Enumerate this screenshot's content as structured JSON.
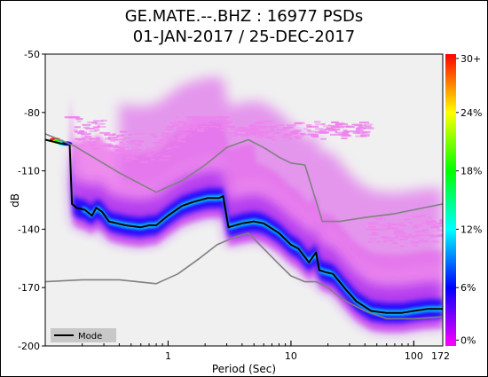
{
  "chart_data": {
    "type": "heatmap",
    "title": "GE.MATE.--.BHZ : 16977 PSDs",
    "subtitle": "01-JAN-2017 / 25-DEC-2017",
    "xlabel": "Period (Sec)",
    "ylabel": "dB",
    "x_scale": "log",
    "xlim": [
      0.1,
      172
    ],
    "ylim": [
      -200,
      -50
    ],
    "x_ticks": [
      {
        "value": 1,
        "label": "1"
      },
      {
        "value": 10,
        "label": "10"
      },
      {
        "value": 100,
        "label": "100"
      },
      {
        "value": 172,
        "label": "172"
      }
    ],
    "y_ticks": [
      {
        "value": -50,
        "label": "-50"
      },
      {
        "value": -80,
        "label": "-80"
      },
      {
        "value": -110,
        "label": "-110"
      },
      {
        "value": -140,
        "label": "-140"
      },
      {
        "value": -170,
        "label": "-170"
      },
      {
        "value": -200,
        "label": "-200"
      }
    ],
    "colorbar": {
      "colors": [
        "#ff00ff",
        "#0000ff",
        "#00ffff",
        "#00ff00",
        "#ffff00",
        "#ff0000"
      ],
      "ticks": [
        "0%",
        "6%",
        "12%",
        "18%",
        "24%",
        "30+"
      ]
    },
    "legend": {
      "position": "bottom-left",
      "entries": [
        "Mode"
      ]
    },
    "background_color": "#f0f0f0",
    "series": [
      {
        "name": "Mode",
        "color": "#000000",
        "x": [
          0.1,
          0.135,
          0.158,
          0.165,
          0.18,
          0.21,
          0.24,
          0.26,
          0.29,
          0.33,
          0.45,
          0.6,
          0.7,
          0.8,
          1.0,
          1.3,
          1.6,
          2.1,
          2.6,
          2.8,
          3.1,
          4.0,
          5.0,
          6.0,
          8.0,
          10.0,
          11.5,
          14.0,
          16.0,
          17.0,
          19.0,
          22.0,
          28.0,
          34.0,
          45.0,
          60.0,
          80.0,
          100.0,
          130.0,
          172.0
        ],
        "y": [
          -94,
          -96,
          -96,
          -127,
          -129,
          -130,
          -133,
          -129,
          -131,
          -136,
          -138,
          -139,
          -138,
          -138,
          -133,
          -128,
          -126,
          -124,
          -124,
          -123,
          -139,
          -137,
          -136,
          -137,
          -142,
          -148,
          -150,
          -157,
          -152,
          -161,
          -162,
          -163,
          -171,
          -177,
          -182,
          -183,
          -183,
          -182,
          -181,
          -181
        ]
      },
      {
        "name": "",
        "color": "#808080",
        "x": [
          0.1,
          0.17,
          0.4,
          0.8,
          1.3,
          2.0,
          3.0,
          4.5,
          6.0,
          8.0,
          10.0,
          13.0,
          18.0,
          25.0,
          40.0,
          70.0,
          100.0,
          172.0
        ],
        "y": [
          -91,
          -97,
          -111,
          -121,
          -115,
          -107,
          -98,
          -94,
          -98,
          -103,
          -106,
          -107,
          -136,
          -136,
          -134,
          -132,
          -130,
          -127
        ]
      },
      {
        "name": "",
        "color": "#808080",
        "x": [
          0.1,
          0.2,
          0.4,
          0.8,
          1.2,
          1.8,
          2.5,
          3.5,
          4.5,
          6.0,
          8.0,
          10.0,
          13.0,
          16.0,
          20.0,
          25.0,
          30.0,
          40.0,
          60.0,
          80.0,
          100.0,
          172.0
        ],
        "y": [
          -167,
          -166,
          -166,
          -168,
          -163,
          -155,
          -148,
          -144,
          -142,
          -150,
          -158,
          -164,
          -167,
          -167,
          -170,
          -175,
          -178,
          -182,
          -186,
          -186,
          -186,
          -185
        ]
      }
    ]
  }
}
